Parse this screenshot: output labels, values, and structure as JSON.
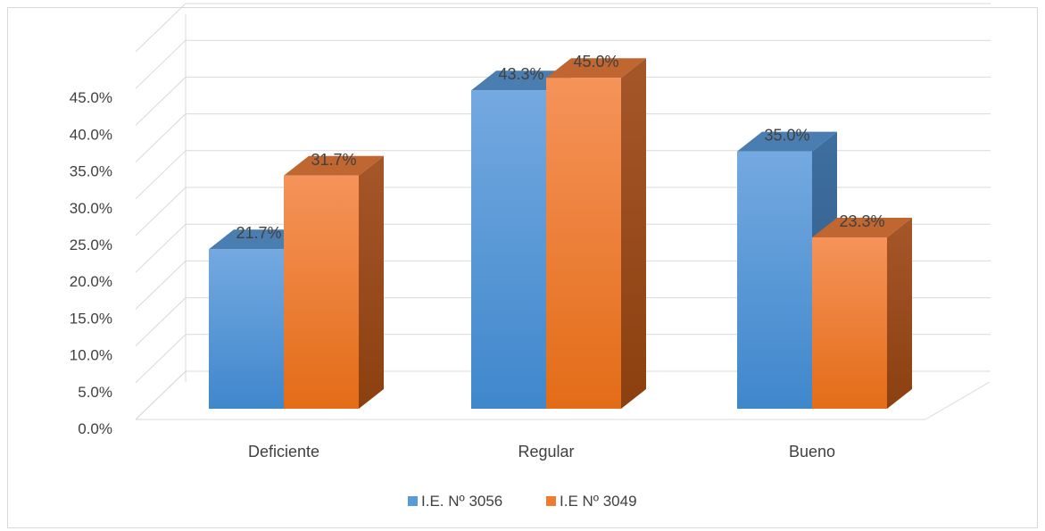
{
  "chart_data": {
    "type": "bar",
    "title": "",
    "xlabel": "",
    "ylabel": "",
    "categories": [
      "Deficiente",
      "Regular",
      "Bueno"
    ],
    "series": [
      {
        "name": "I.E. Nº 3056",
        "values": [
          21.7,
          43.3,
          35.0
        ],
        "labels": [
          "21.7%",
          "43.3%",
          "35.0%"
        ],
        "color": "#5b9bd5"
      },
      {
        "name": "I.E Nº 3049",
        "values": [
          31.7,
          45.0,
          23.3
        ],
        "labels": [
          "31.7%",
          "45.0%",
          "23.3%"
        ],
        "color": "#ed7d31"
      }
    ],
    "yticks": [
      "0.0%",
      "5.0%",
      "10.0%",
      "15.0%",
      "20.0%",
      "25.0%",
      "30.0%",
      "35.0%",
      "40.0%",
      "45.0%"
    ],
    "ylim": [
      0,
      50
    ],
    "style": "3d-clustered-column",
    "grid": true,
    "legend_position": "bottom"
  }
}
